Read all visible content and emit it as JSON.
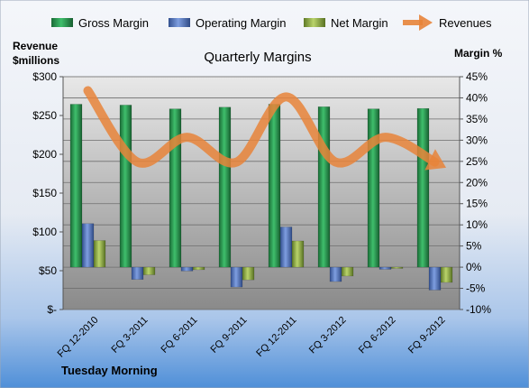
{
  "chart_data": {
    "type": "bar",
    "title": "Quarterly Margins",
    "company": "Tuesday Morning",
    "left_axis_label_line1": "Revenue",
    "left_axis_label_line2": "$millions",
    "right_axis_label": "Margin %",
    "categories": [
      "FQ 12-2010",
      "FQ 3-2011",
      "FQ 6-2011",
      "FQ 9-2011",
      "FQ 12-2011",
      "FQ 3-2012",
      "FQ 6-2012",
      "FQ 9-2012"
    ],
    "left_axis": {
      "min": 0,
      "max": 300,
      "ticks": [
        0,
        50,
        100,
        150,
        200,
        250,
        300
      ],
      "tick_labels": [
        "$-",
        "$50",
        "$100",
        "$150",
        "$200",
        "$250",
        "$300"
      ]
    },
    "right_axis": {
      "min": -10,
      "max": 45,
      "ticks": [
        -10,
        -5,
        0,
        5,
        10,
        15,
        20,
        25,
        30,
        35,
        40,
        45
      ],
      "tick_labels": [
        "-10%",
        "-5%",
        "0%",
        "5%",
        "10%",
        "15%",
        "20%",
        "25%",
        "30%",
        "35%",
        "40%",
        "45%"
      ]
    },
    "series": [
      {
        "name": "Gross Margin",
        "axis": "right",
        "kind": "bar",
        "values": [
          38.5,
          38.3,
          37.4,
          37.8,
          38.5,
          37.9,
          37.4,
          37.5
        ]
      },
      {
        "name": "Operating Margin",
        "axis": "right",
        "kind": "bar",
        "values": [
          10.3,
          -2.9,
          -0.9,
          -4.7,
          9.5,
          -3.4,
          -0.5,
          -5.4
        ]
      },
      {
        "name": "Net Margin",
        "axis": "right",
        "kind": "bar",
        "values": [
          6.3,
          -1.8,
          -0.6,
          -3.0,
          6.2,
          -2.1,
          -0.3,
          -3.6
        ]
      },
      {
        "name": "Revenues",
        "axis": "left",
        "kind": "arrow-line",
        "values": [
          282,
          190,
          222,
          190,
          274,
          190,
          222,
          190
        ]
      }
    ],
    "grid": true,
    "legend_position": "top"
  },
  "colors": {
    "gross_margin": "#1f8a46",
    "operating_margin": "#4f73b9",
    "net_margin": "#8fab4a",
    "revenues": "#e8843a",
    "header_bg": "#dfe6f0",
    "plot_top": "#e7e7e7",
    "plot_bottom": "#8c8c8c",
    "footer_bg": "#4f8fd8"
  }
}
